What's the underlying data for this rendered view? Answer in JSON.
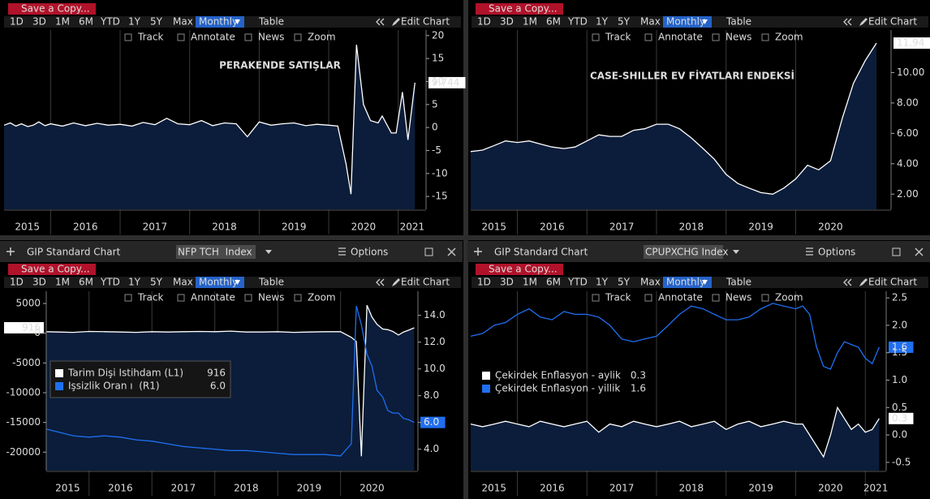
{
  "toolbar": {
    "save": "Save a Copy...",
    "ranges": [
      "1D",
      "3D",
      "1M",
      "6M",
      "YTD",
      "1Y",
      "5Y",
      "Max"
    ],
    "period": "Monthly",
    "table": "Table",
    "edit": "Edit Chart",
    "tools": [
      "Track",
      "Annotate",
      "News",
      "Zoom"
    ]
  },
  "window": {
    "title": "GIP Standard Chart",
    "options": "Options",
    "securities": [
      "NFP TCH  Index",
      "CPUPXCHG Index"
    ]
  },
  "chart_data": [
    {
      "type": "line",
      "title": "PERAKENDE SATIŞLAR",
      "x": [
        2015.33,
        2015.42,
        2015.5,
        2015.58,
        2015.67,
        2015.75,
        2015.83,
        2015.92,
        2016.0,
        2016.17,
        2016.33,
        2016.5,
        2016.67,
        2016.83,
        2017.0,
        2017.17,
        2017.33,
        2017.5,
        2017.67,
        2017.83,
        2018.0,
        2018.17,
        2018.33,
        2018.5,
        2018.67,
        2018.83,
        2019.0,
        2019.17,
        2019.33,
        2019.5,
        2019.67,
        2019.83,
        2020.0,
        2020.13,
        2020.25,
        2020.32,
        2020.4,
        2020.5,
        2020.6,
        2020.71,
        2020.77,
        2020.9,
        2020.97,
        2021.06,
        2021.14,
        2021.24
      ],
      "series": [
        {
          "color": "#ffffff",
          "area": true,
          "values": [
            0.5,
            1.0,
            0.3,
            0.8,
            0.2,
            0.5,
            1.2,
            0.4,
            0.8,
            0.3,
            1.0,
            0.4,
            0.9,
            0.5,
            0.7,
            0.3,
            1.1,
            0.6,
            2.0,
            0.8,
            0.6,
            1.5,
            0.4,
            1.0,
            0.8,
            -2.0,
            1.2,
            0.5,
            0.8,
            1.0,
            0.4,
            0.7,
            0.5,
            0.3,
            -8.0,
            -14.5,
            18.0,
            5.0,
            1.5,
            1.0,
            2.5,
            -1.2,
            -1.2,
            7.7,
            -2.7,
            9.744
          ]
        }
      ],
      "xlim": [
        2015.33,
        2021.4
      ],
      "xticks": [
        2015,
        2016,
        2017,
        2018,
        2019,
        2020,
        2021
      ],
      "ylim": [
        -17.8,
        21.2
      ],
      "yticks": [
        -15,
        -10,
        -5,
        0,
        5,
        10,
        15,
        20
      ]
    },
    {
      "type": "line",
      "title": "CASE-SHILLER EV FİYATLARI ENDEKSİ",
      "x": [
        2015.33,
        2015.5,
        2015.67,
        2015.83,
        2016.0,
        2016.17,
        2016.33,
        2016.5,
        2016.67,
        2016.83,
        2017.0,
        2017.17,
        2017.33,
        2017.5,
        2017.67,
        2017.83,
        2018.0,
        2018.17,
        2018.33,
        2018.5,
        2018.67,
        2018.83,
        2019.0,
        2019.17,
        2019.33,
        2019.5,
        2019.67,
        2019.83,
        2020.0,
        2020.17,
        2020.33,
        2020.5,
        2020.67,
        2020.83,
        2021.0,
        2021.16
      ],
      "series": [
        {
          "color": "#ffffff",
          "area": true,
          "values": [
            4.8,
            4.9,
            5.2,
            5.5,
            5.4,
            5.5,
            5.3,
            5.1,
            5.0,
            5.1,
            5.5,
            5.9,
            5.8,
            5.8,
            6.2,
            6.3,
            6.6,
            6.6,
            6.3,
            5.7,
            5.0,
            4.3,
            3.3,
            2.7,
            2.4,
            2.1,
            2.0,
            2.4,
            3.0,
            3.9,
            3.6,
            4.2,
            7.0,
            9.3,
            10.8,
            11.94
          ]
        }
      ],
      "xlim": [
        2015.33,
        2021.37
      ],
      "xticks": [
        2015,
        2016,
        2017,
        2018,
        2019,
        2020
      ],
      "ylim": [
        1.0,
        12.8
      ],
      "yticks": [
        {
          "value": 2,
          "label": "2.00"
        },
        {
          "value": 4,
          "label": "4.00"
        },
        {
          "value": 6,
          "label": "6.00"
        },
        {
          "value": 8,
          "label": "8.00"
        },
        {
          "value": 10,
          "label": "10.00"
        }
      ]
    },
    {
      "type": "line",
      "x": [
        2015.32,
        2015.5,
        2015.75,
        2016.0,
        2016.25,
        2016.5,
        2016.75,
        2017.0,
        2017.25,
        2017.5,
        2017.75,
        2018.0,
        2018.25,
        2018.5,
        2018.75,
        2019.0,
        2019.25,
        2019.5,
        2019.75,
        2020.0,
        2020.17,
        2020.25,
        2020.33,
        2020.42,
        2020.5,
        2020.58,
        2020.67,
        2020.75,
        2020.83,
        2020.92,
        2021.0,
        2021.08,
        2021.17
      ],
      "series": [
        {
          "name": "Tarim Dişi Istihdam (L1)",
          "color": "#ffffff",
          "area": true,
          "values": [
            250,
            200,
            150,
            300,
            250,
            200,
            150,
            250,
            200,
            250,
            300,
            250,
            350,
            200,
            200,
            250,
            150,
            200,
            250,
            250,
            -700,
            -1400,
            -20700,
            4700,
            2700,
            1500,
            700,
            600,
            300,
            -300,
            200,
            500,
            916
          ]
        },
        {
          "name": "Işsizlik Oran ı  (R1)",
          "color": "#1f6ff0",
          "axis": "y2",
          "values": [
            5.5,
            5.3,
            5.0,
            4.9,
            5.0,
            4.9,
            4.7,
            4.6,
            4.4,
            4.2,
            4.1,
            4.0,
            3.9,
            3.9,
            3.8,
            3.7,
            3.6,
            3.6,
            3.6,
            3.5,
            4.4,
            14.7,
            13.3,
            11.1,
            10.2,
            8.4,
            7.9,
            6.9,
            6.7,
            6.7,
            6.3,
            6.2,
            6.0
          ],
          "value_labels": [
            null,
            null,
            null,
            null,
            null,
            null,
            null,
            null,
            null,
            null,
            null,
            null,
            null,
            null,
            null,
            null,
            null,
            null,
            null,
            null,
            null,
            null,
            null,
            null,
            null,
            null,
            null,
            null,
            null,
            null,
            null,
            null,
            "6.0"
          ]
        }
      ],
      "xlim": [
        2015.32,
        2021.23
      ],
      "xticks": [
        2015,
        2016,
        2017,
        2018,
        2019,
        2020
      ],
      "ylim": [
        -23100,
        7050
      ],
      "yticks": [
        -20000,
        -15000,
        -10000,
        -5000,
        0,
        5000
      ],
      "y2lim": [
        2.4,
        15.8
      ],
      "y2ticks": [
        {
          "value": 4,
          "label": "4.0"
        },
        {
          "value": 6,
          "label": "6.0"
        },
        {
          "value": 8,
          "label": "8.0"
        },
        {
          "value": 10,
          "label": "10.0"
        },
        {
          "value": 12,
          "label": "12.0"
        },
        {
          "value": 14,
          "label": "14.0"
        }
      ],
      "legend": "upper left"
    },
    {
      "type": "line",
      "x": [
        2015.33,
        2015.5,
        2015.67,
        2015.83,
        2016.0,
        2016.17,
        2016.33,
        2016.5,
        2016.67,
        2016.83,
        2017.0,
        2017.17,
        2017.33,
        2017.5,
        2017.67,
        2017.83,
        2018.0,
        2018.17,
        2018.33,
        2018.5,
        2018.67,
        2018.83,
        2019.0,
        2019.17,
        2019.33,
        2019.5,
        2019.67,
        2019.83,
        2020.0,
        2020.1,
        2020.2,
        2020.3,
        2020.4,
        2020.5,
        2020.6,
        2020.7,
        2020.8,
        2020.9,
        2021.0,
        2021.1,
        2021.2
      ],
      "series": [
        {
          "name": "Çekirdek Enflasyon - aylik",
          "color": "#ffffff",
          "area": true,
          "values": [
            0.2,
            0.15,
            0.2,
            0.25,
            0.2,
            0.15,
            0.25,
            0.2,
            0.15,
            0.2,
            0.25,
            0.05,
            0.2,
            0.15,
            0.25,
            0.2,
            0.15,
            0.2,
            0.25,
            0.15,
            0.2,
            0.25,
            0.1,
            0.2,
            0.25,
            0.15,
            0.2,
            0.25,
            0.2,
            0.2,
            0.0,
            -0.2,
            -0.4,
            0.0,
            0.5,
            0.3,
            0.1,
            0.2,
            0.05,
            0.1,
            0.3
          ]
        },
        {
          "name": "Çekirdek Enflasyon - yillik",
          "color": "#1f6ff0",
          "values": [
            1.8,
            1.85,
            2.0,
            2.05,
            2.2,
            2.3,
            2.15,
            2.1,
            2.25,
            2.2,
            2.2,
            2.15,
            2.0,
            1.75,
            1.7,
            1.75,
            1.8,
            2.0,
            2.2,
            2.35,
            2.3,
            2.2,
            2.1,
            2.1,
            2.15,
            2.3,
            2.4,
            2.35,
            2.3,
            2.35,
            2.2,
            1.6,
            1.25,
            1.2,
            1.5,
            1.7,
            1.65,
            1.6,
            1.4,
            1.3,
            1.6
          ]
        }
      ],
      "xlim": [
        2015.33,
        2021.3
      ],
      "xticks": [
        2015,
        2016,
        2017,
        2018,
        2019,
        2020,
        2021
      ],
      "ylim": [
        -0.65,
        2.62
      ],
      "yticks": [
        -0.5,
        {
          "value": 0,
          "label": "0.0"
        },
        0.5,
        {
          "value": 1,
          "label": "1.0"
        },
        1.5,
        {
          "value": 2,
          "label": "2.0"
        },
        2.5
      ],
      "legend": "upper left"
    }
  ]
}
